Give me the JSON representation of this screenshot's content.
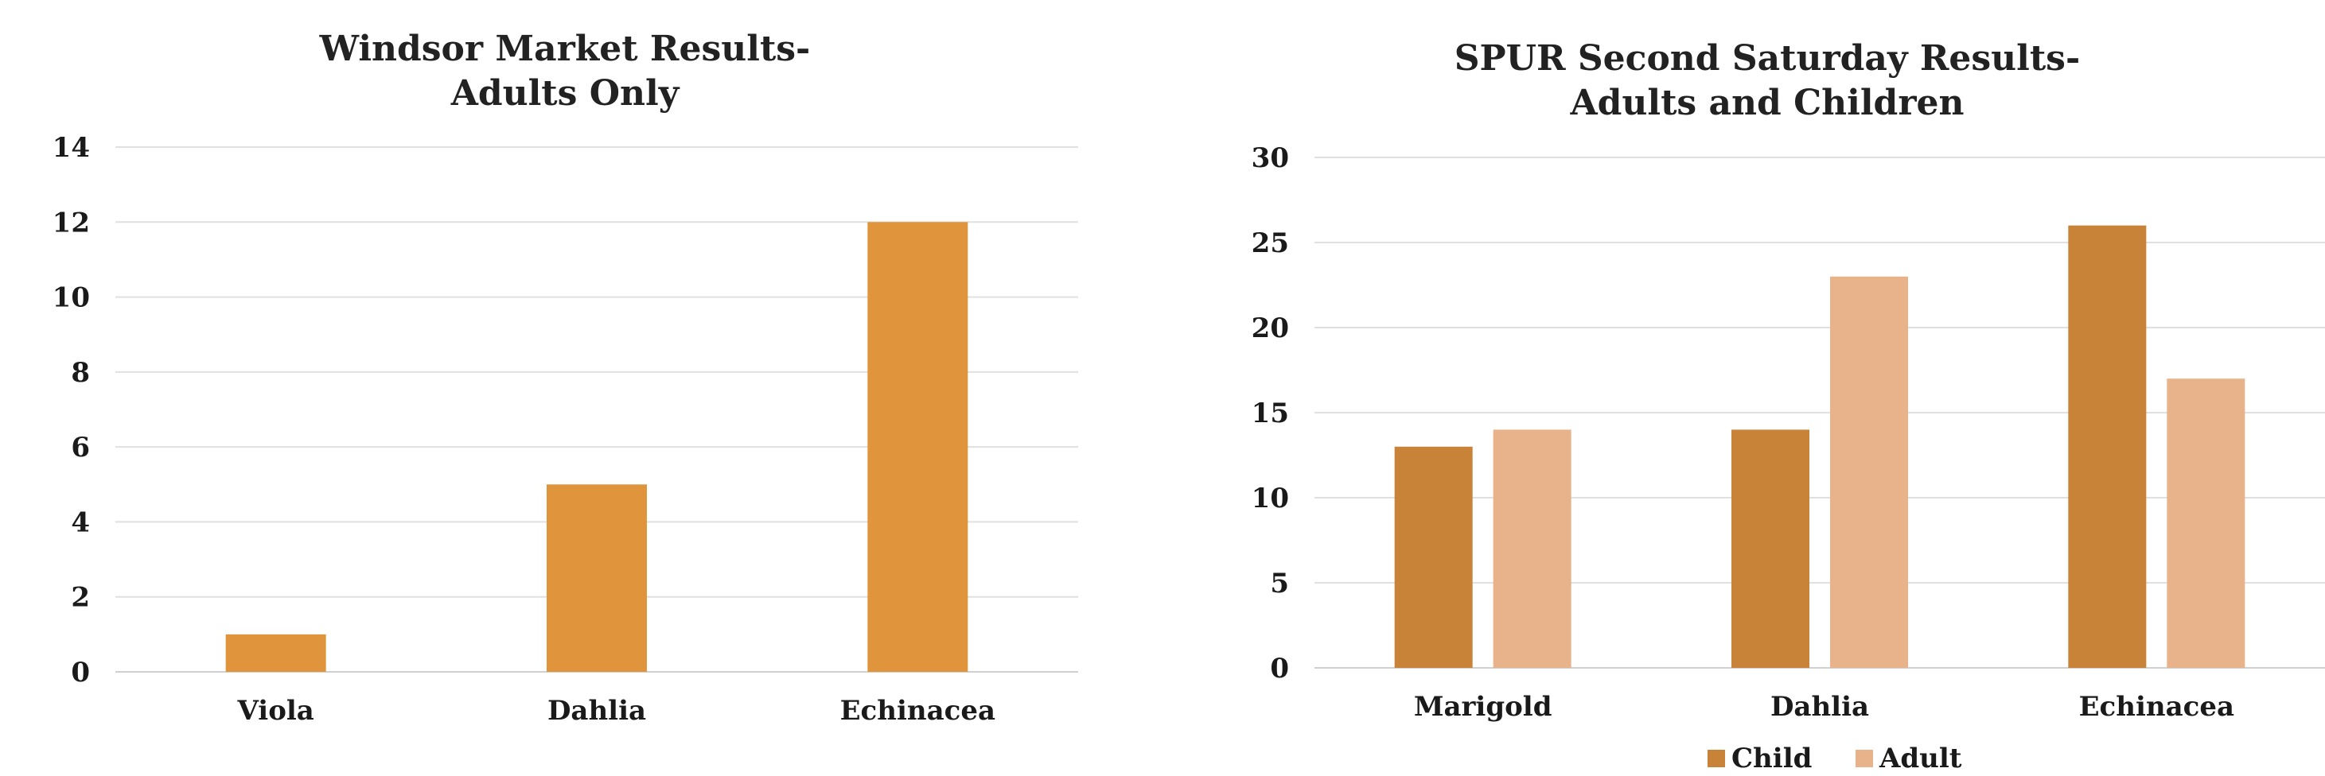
{
  "chart_data": [
    {
      "type": "bar",
      "title_lines": [
        "Windsor Market Results-",
        "Adults Only"
      ],
      "categories": [
        "Viola",
        "Dahlia",
        "Echinacea"
      ],
      "series": [
        {
          "values": [
            1,
            5,
            12
          ],
          "color": "#E0953C"
        }
      ],
      "ylim": [
        0,
        14
      ],
      "yticks": [
        0,
        2,
        4,
        6,
        8,
        10,
        12,
        14
      ],
      "grid": true,
      "legend": "none"
    },
    {
      "type": "bar",
      "title_lines": [
        "SPUR Second Saturday  Results-",
        "Adults and Children"
      ],
      "categories": [
        "Marigold",
        "Dahlia",
        "Echinacea"
      ],
      "series": [
        {
          "name": "Child",
          "values": [
            13,
            14,
            26
          ],
          "color": "#C88338"
        },
        {
          "name": "Adult",
          "values": [
            14,
            23,
            17
          ],
          "color": "#E8B38A"
        }
      ],
      "ylim": [
        0,
        30
      ],
      "yticks": [
        0,
        5,
        10,
        15,
        20,
        25,
        30
      ],
      "grid": true,
      "legend": "bottom"
    }
  ]
}
